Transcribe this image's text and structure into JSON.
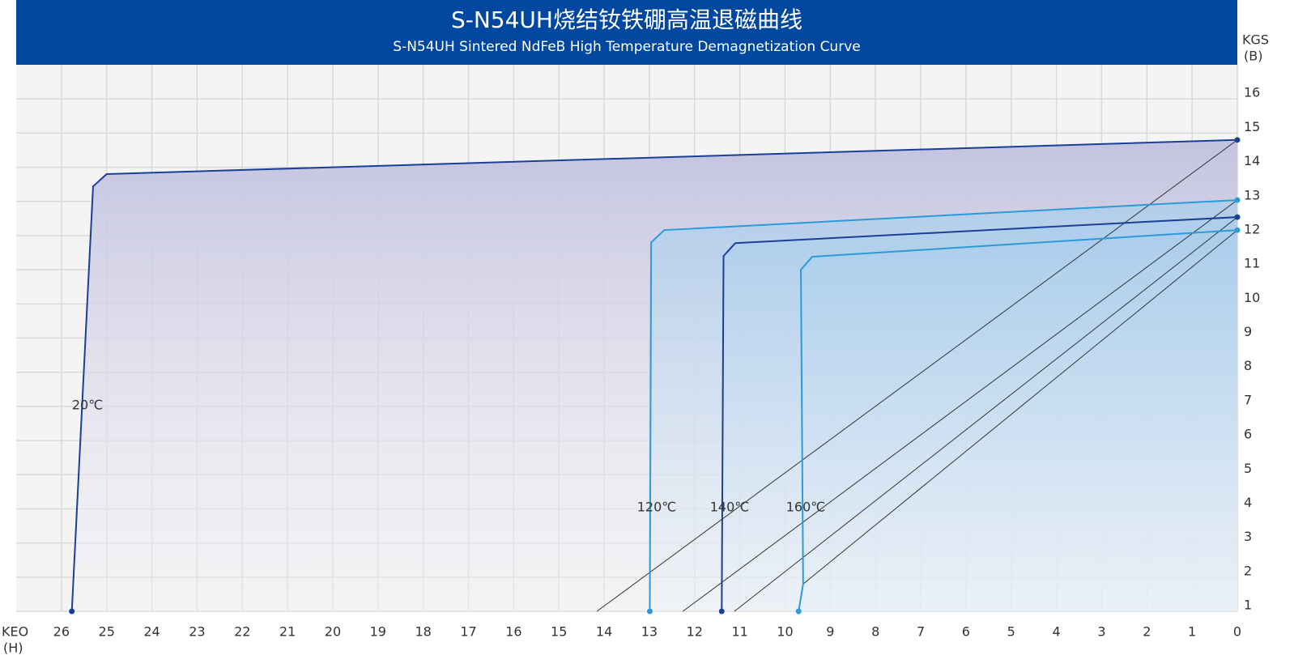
{
  "chart_data": {
    "type": "line",
    "title": "S-N54UH烧结钕铁硼高温退磁曲线",
    "subtitle": "S-N54UH Sintered NdFeB High Temperature Demagnetization Curve",
    "xlabel": [
      "KEO",
      "(H)"
    ],
    "ylabel": [
      "KGS",
      "(B)"
    ],
    "xlim": [
      27,
      0
    ],
    "ylim": [
      1,
      17
    ],
    "xticks": [
      0,
      1,
      2,
      3,
      4,
      5,
      6,
      7,
      8,
      9,
      10,
      11,
      12,
      13,
      14,
      15,
      16,
      17,
      18,
      19,
      20,
      21,
      22,
      23,
      24,
      25,
      26
    ],
    "yticks": [
      1,
      2,
      3,
      4,
      5,
      6,
      7,
      8,
      9,
      10,
      11,
      12,
      13,
      14,
      15,
      16
    ],
    "grid": true,
    "series": [
      {
        "name": "20℃",
        "color": "#1a3f96",
        "x": [
          0,
          25.0,
          25.3,
          25.77
        ],
        "values": [
          14.8,
          13.8,
          13.44,
          1
        ]
      },
      {
        "name": "120℃",
        "color": "#2a9bd8",
        "x": [
          0,
          12.67,
          12.96,
          12.99
        ],
        "values": [
          13.04,
          12.16,
          11.8,
          1
        ]
      },
      {
        "name": "140℃",
        "color": "#1a3f96",
        "x": [
          0,
          11.1,
          11.36,
          11.4
        ],
        "values": [
          12.54,
          11.78,
          11.4,
          1
        ]
      },
      {
        "name": "160℃",
        "color": "#2a9bd8",
        "x": [
          0,
          9.4,
          9.65,
          9.6,
          9.7
        ],
        "values": [
          12.16,
          11.38,
          11.0,
          1.8,
          1
        ]
      }
    ],
    "load_lines": [
      {
        "x": [
          0,
          14.16
        ],
        "values": [
          14.8,
          1
        ]
      },
      {
        "x": [
          0,
          12.26
        ],
        "values": [
          13.04,
          1
        ]
      },
      {
        "x": [
          0,
          11.12
        ],
        "values": [
          12.54,
          1
        ]
      },
      {
        "x": [
          0,
          9.6
        ],
        "values": [
          12.16,
          1.8
        ]
      }
    ]
  }
}
